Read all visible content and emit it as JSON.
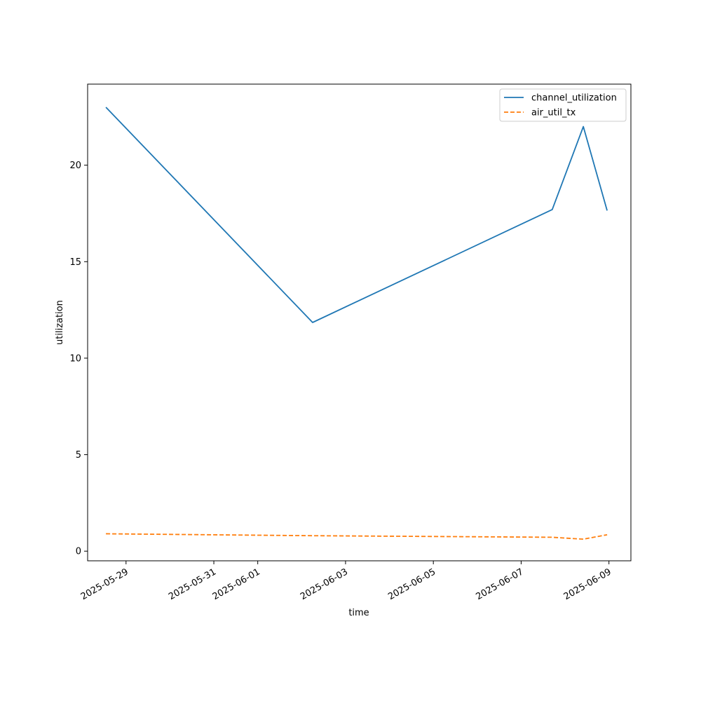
{
  "chart_data": {
    "type": "line",
    "title": "",
    "xlabel": "time",
    "ylabel": "utilization",
    "x_ticks": [
      "2025-05-29",
      "2025-05-31",
      "2025-06-01",
      "2025-06-03",
      "2025-06-05",
      "2025-06-07",
      "2025-06-09"
    ],
    "y_ticks": [
      0,
      5,
      10,
      15,
      20
    ],
    "xlim": [
      "2025-05-28T03:00",
      "2025-06-09T12:00"
    ],
    "ylim": [
      -0.5,
      24.2
    ],
    "grid": false,
    "legend_position": "upper right",
    "series": [
      {
        "name": "channel_utilization",
        "color": "#1f77b4",
        "dash": "solid",
        "x": [
          "2025-05-28T13:00",
          "2025-06-02T06:00",
          "2025-06-07T17:00",
          "2025-06-08T10:00",
          "2025-06-08T23:00"
        ],
        "y": [
          23.0,
          11.85,
          17.7,
          22.0,
          17.65
        ]
      },
      {
        "name": "air_util_tx",
        "color": "#ff7f0e",
        "dash": "dashed",
        "x": [
          "2025-05-28T13:00",
          "2025-06-02T06:00",
          "2025-06-07T17:00",
          "2025-06-08T10:00",
          "2025-06-08T23:00"
        ],
        "y": [
          0.9,
          0.8,
          0.72,
          0.62,
          0.85
        ]
      }
    ]
  }
}
